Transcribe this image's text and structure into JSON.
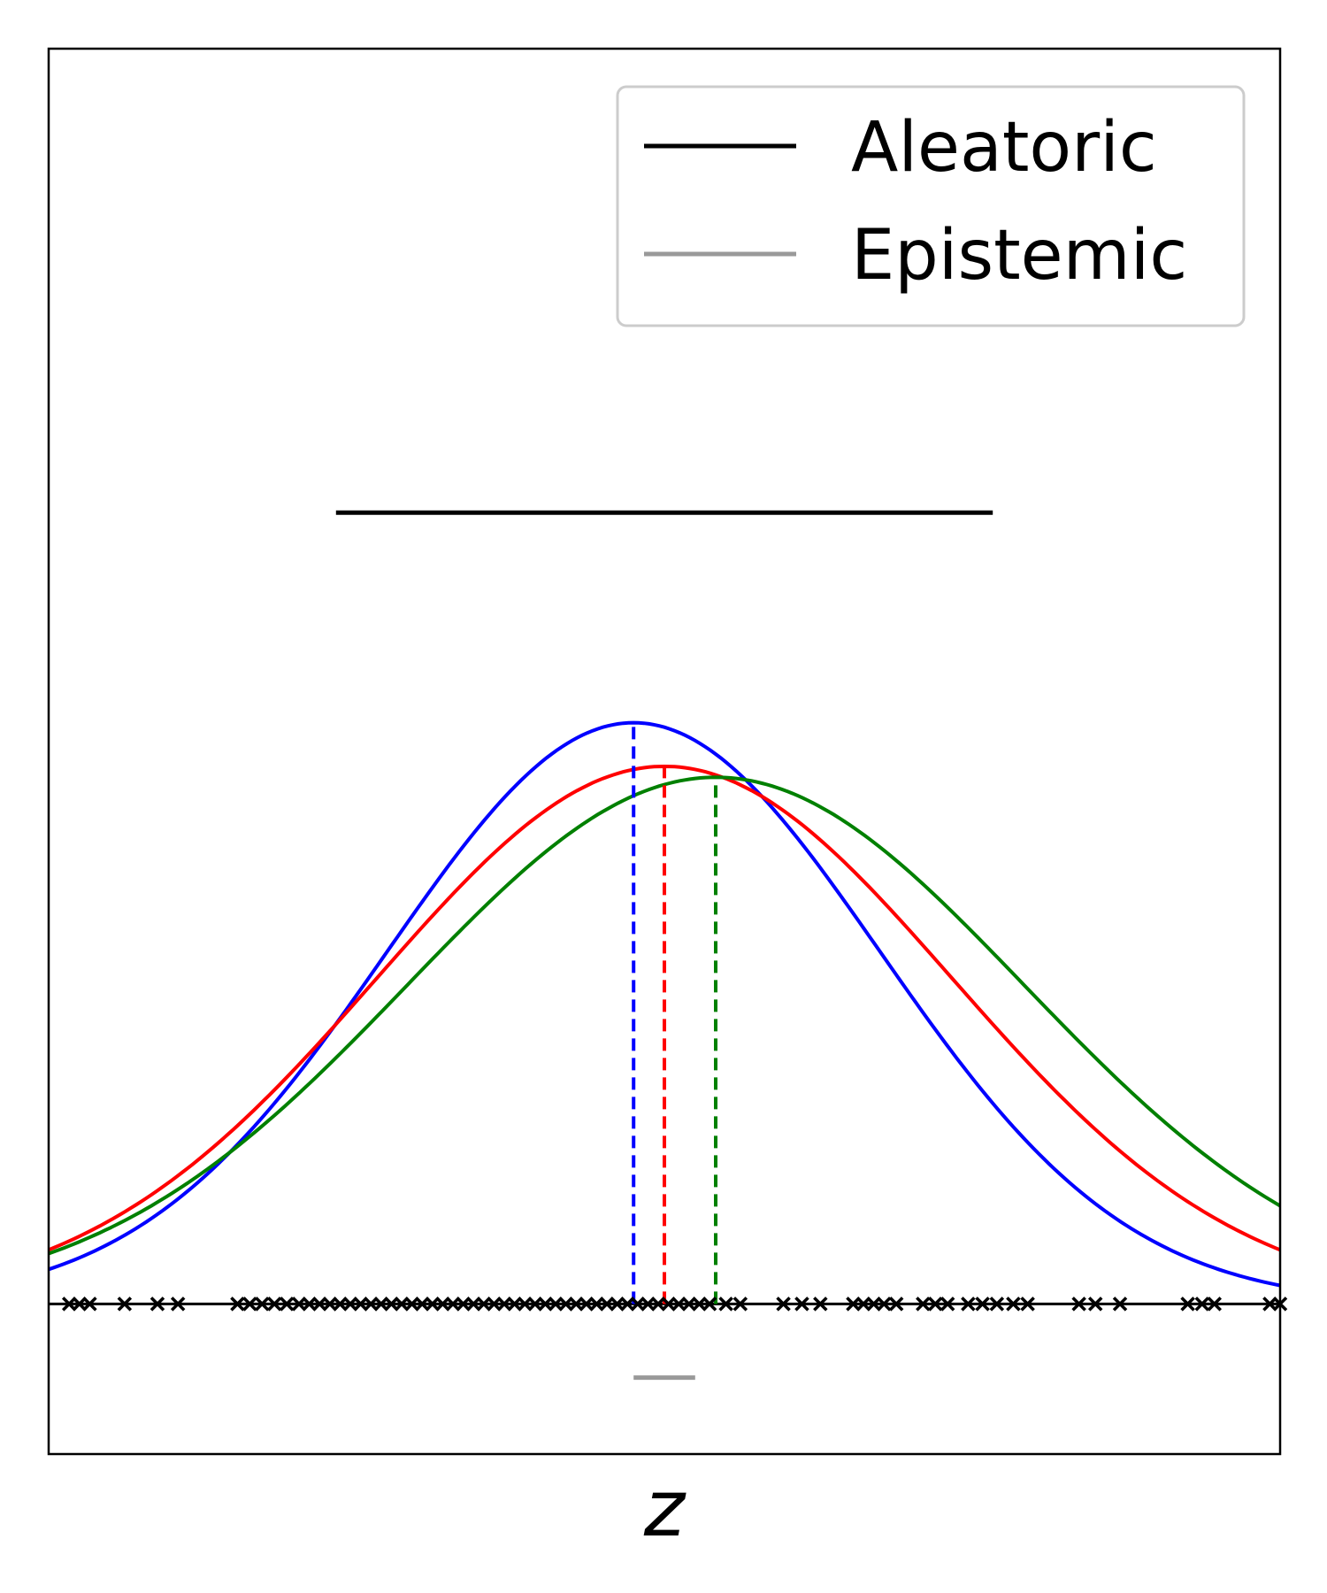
{
  "chart_data": {
    "type": "line",
    "xlabel": "z",
    "ylabel": "",
    "ticks": "none",
    "grid": false,
    "xlim": [
      -3.0,
      3.0
    ],
    "ylim": [
      -0.55,
      4.6
    ],
    "legend": {
      "placement": "top-right",
      "entries": [
        {
          "label": "Aleatoric",
          "color": "#000000"
        },
        {
          "label": "Epistemic",
          "color": "#999999"
        }
      ]
    },
    "interval_lines": [
      {
        "legend": "Aleatoric",
        "color": "#000000",
        "x": [
          -1.6,
          1.6
        ],
        "y": 2.9
      },
      {
        "legend": "Epistemic",
        "color": "#999999",
        "x": [
          -0.15,
          0.15
        ],
        "y": -0.27
      }
    ],
    "density_curves": [
      {
        "color": "#0000ff",
        "mean": -0.15,
        "sigma": 1.2,
        "peak": 2.13
      },
      {
        "color": "#ff0000",
        "mean": 0.0,
        "sigma": 1.4,
        "peak": 1.97
      },
      {
        "color": "#008000",
        "mean": 0.25,
        "sigma": 1.5,
        "peak": 1.93
      }
    ],
    "mean_markers": [
      {
        "color": "#0000ff",
        "x": -0.15,
        "y": 2.13
      },
      {
        "color": "#ff0000",
        "x": 0.0,
        "y": 1.97
      },
      {
        "color": "#008000",
        "x": 0.25,
        "y": 1.93
      }
    ],
    "baseline_y": 0.0,
    "samples_x": [
      -2.9,
      -2.85,
      -2.8,
      -2.63,
      -2.47,
      -2.37,
      -2.08,
      -2.02,
      -1.96,
      -1.9,
      -1.84,
      -1.78,
      -1.73,
      -1.68,
      -1.63,
      -1.58,
      -1.53,
      -1.48,
      -1.43,
      -1.38,
      -1.33,
      -1.28,
      -1.23,
      -1.18,
      -1.13,
      -1.08,
      -1.03,
      -0.98,
      -0.93,
      -0.88,
      -0.83,
      -0.78,
      -0.73,
      -0.68,
      -0.63,
      -0.58,
      -0.53,
      -0.48,
      -0.43,
      -0.38,
      -0.33,
      -0.28,
      -0.23,
      -0.18,
      -0.13,
      -0.08,
      -0.03,
      0.02,
      0.07,
      0.12,
      0.17,
      0.22,
      0.3,
      0.37,
      0.58,
      0.67,
      0.76,
      0.92,
      0.97,
      1.02,
      1.07,
      1.13,
      1.26,
      1.32,
      1.38,
      1.48,
      1.55,
      1.62,
      1.7,
      1.77,
      2.02,
      2.1,
      2.22,
      2.55,
      2.62,
      2.68,
      2.95,
      3.0
    ]
  }
}
